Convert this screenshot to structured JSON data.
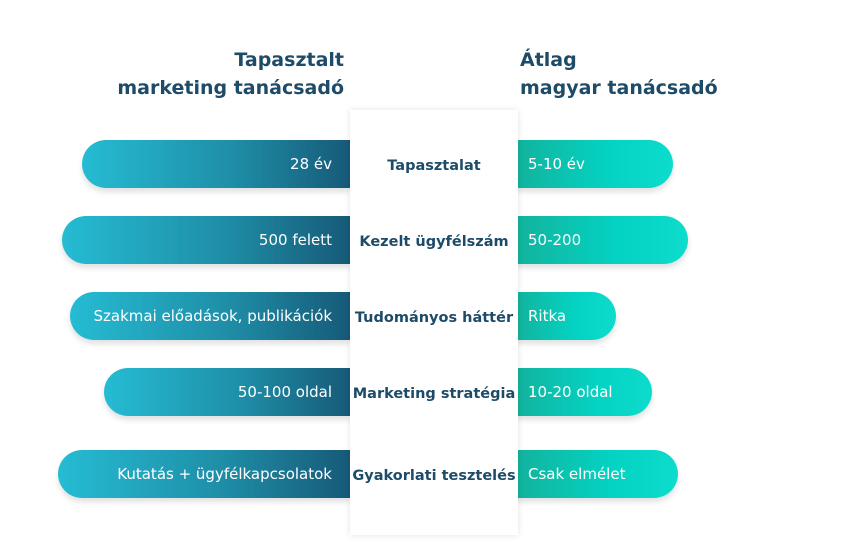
{
  "headers": {
    "left": [
      "Tapasztalt",
      "marketing tanácsadó"
    ],
    "right": [
      "Átlag",
      "magyar tanácsadó"
    ]
  },
  "rows": [
    {
      "category": "Tapasztalat",
      "left": "28 év",
      "right": "5-10 év"
    },
    {
      "category": "Kezelt ügyfélszám",
      "left": "500 felett",
      "right": "50-200"
    },
    {
      "category": "Tudományos háttér",
      "left": "Szakmai előadások, publikációk",
      "right": "Ritka"
    },
    {
      "category": "Marketing stratégia",
      "left": "50-100 oldal",
      "right": "10-20 oldal"
    },
    {
      "category": "Gyakorlati tesztelés",
      "left": "Kutatás + ügyfélkapcsolatok",
      "right": "Csak elmélet"
    }
  ],
  "colors": {
    "left_dark": "#165a78",
    "left_light": "#25bcd3",
    "right_dark": "#12b39d",
    "right_light": "#0ddccd",
    "text": "#1d4b68"
  }
}
